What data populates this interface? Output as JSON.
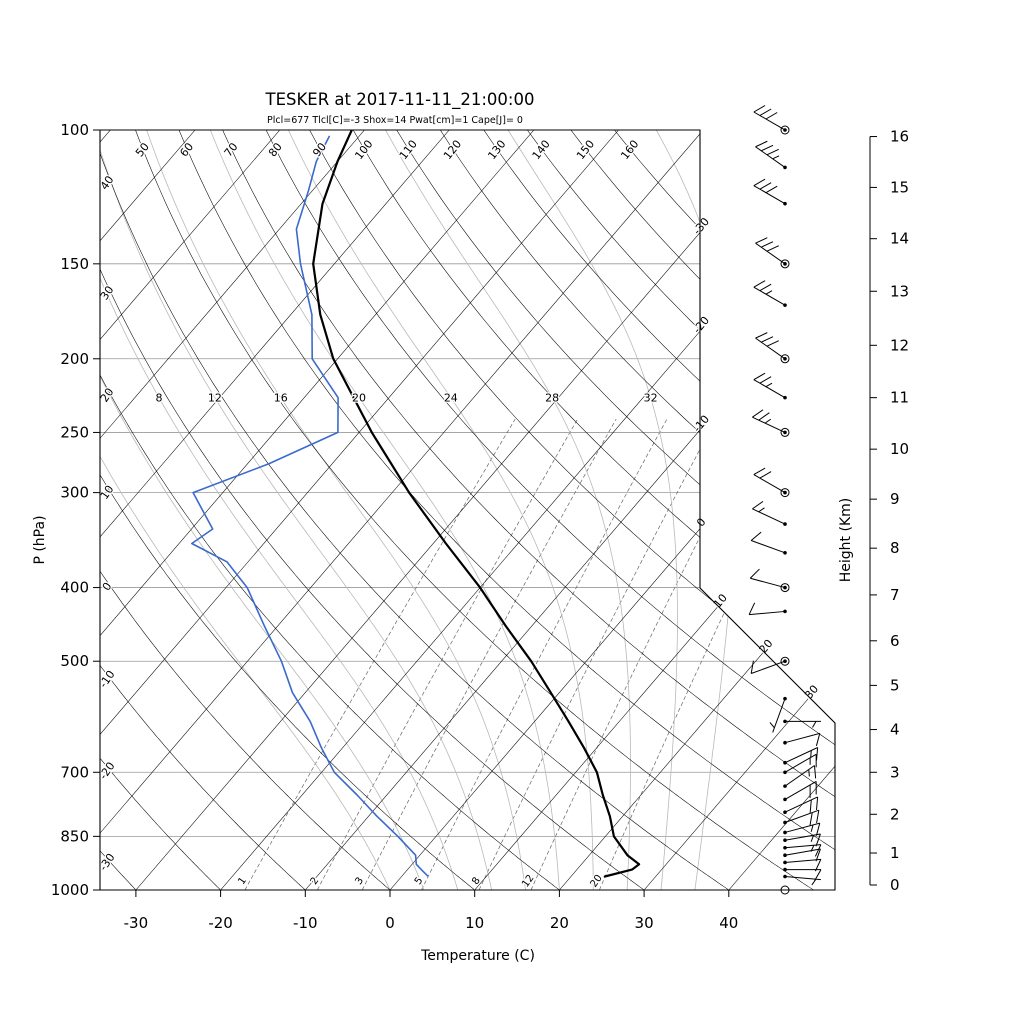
{
  "title": "TESKER at 2017-11-11_21:00:00",
  "subtitle": "Plcl=677 Tlcl[C]=-3 Shox=14 Pwat[cm]=1 Cape[J]= 0",
  "colors": {
    "subtitle": "#cc5500",
    "temperature_line": "#000000",
    "dewpoint_line": "#3a6bcc",
    "isobar": "#999999",
    "isotherm": "#000000",
    "dry_adiabat": "#000000",
    "moist_adiabat": "#b9b9b9",
    "mixing_ratio": "#666666",
    "frame": "#000000",
    "barb": "#000000"
  },
  "axes": {
    "pressure_label": "P (hPa)",
    "temperature_label": "Temperature (C)",
    "height_label": "Height (Km)",
    "pressure_ticks": [
      100,
      150,
      200,
      250,
      300,
      400,
      500,
      700,
      850,
      1000
    ],
    "temperature_ticks": [
      -30,
      -20,
      -10,
      0,
      10,
      20,
      30,
      40
    ]
  },
  "chart_data": {
    "type": "line",
    "subtype": "skewt_log_p_sounding",
    "station": "TESKER",
    "datetime": "2017-11-11_21:00:00",
    "parameters": {
      "Plcl": 677,
      "Tlcl_C": -3,
      "Shox": 14,
      "Pwat_cm": 1,
      "Cape_J": 0
    },
    "xlabel": "Temperature (C)",
    "ylabel": "P (hPa)",
    "y2label": "Height (Km)",
    "xlim": [
      -30,
      40
    ],
    "ylim_hpa": [
      1000,
      100
    ],
    "isotherms_c": {
      "min": -120,
      "max": 40,
      "step": 10,
      "edge_labels": [
        -30,
        -20,
        -10,
        0,
        10,
        20,
        30
      ]
    },
    "dry_adiabats_c": {
      "min": -30,
      "max": 160,
      "step": 10,
      "left_labels": [
        40,
        30,
        20,
        10,
        0,
        -10,
        -20,
        -30
      ],
      "top_labels": [
        50,
        60,
        70,
        80,
        90,
        100,
        110,
        120,
        130,
        140,
        150,
        160
      ]
    },
    "moist_adiabats_c": {
      "values": [
        0,
        4,
        8,
        12,
        16,
        20,
        24,
        28,
        32,
        36
      ],
      "labeled": [
        8,
        12,
        16,
        20,
        24,
        28,
        32
      ],
      "label_pressure_hpa": 225
    },
    "mixing_ratio_g_kg": [
      1,
      2,
      3,
      5,
      8,
      12,
      20
    ],
    "height_km_pressures": [
      [
        0,
        985
      ],
      [
        1,
        894
      ],
      [
        2,
        795
      ],
      [
        3,
        700
      ],
      [
        4,
        615
      ],
      [
        5,
        538
      ],
      [
        6,
        470
      ],
      [
        7,
        409
      ],
      [
        8,
        355
      ],
      [
        9,
        306
      ],
      [
        10,
        263
      ],
      [
        11,
        225
      ],
      [
        12,
        192
      ],
      [
        13,
        163
      ],
      [
        14,
        139
      ],
      [
        15,
        119
      ],
      [
        16,
        102
      ]
    ],
    "temperature_profile": {
      "pressure_hpa": [
        960,
        940,
        925,
        900,
        850,
        800,
        750,
        700,
        650,
        600,
        550,
        500,
        450,
        400,
        350,
        300,
        250,
        200,
        175,
        150,
        125,
        110,
        100
      ],
      "temp_c": [
        24.0,
        26.5,
        26.8,
        24.5,
        21.0,
        18.5,
        15.5,
        12.5,
        8.5,
        4.0,
        -1.0,
        -6.5,
        -13.0,
        -20.0,
        -28.5,
        -38.0,
        -48.5,
        -60.5,
        -66.5,
        -72.5,
        -77.5,
        -80.0,
        -81.5
      ]
    },
    "dewpoint_profile": {
      "pressure_hpa": [
        958,
        945,
        925,
        900,
        850,
        800,
        750,
        700,
        650,
        600,
        550,
        500,
        450,
        400,
        370,
        350,
        335,
        320,
        300,
        275,
        250,
        225,
        200,
        175,
        150,
        135,
        120,
        110,
        102
      ],
      "temp_c": [
        3.0,
        2.0,
        0.5,
        -0.5,
        -4.5,
        -9.0,
        -13.5,
        -18.5,
        -22.5,
        -26.5,
        -31.5,
        -36.0,
        -41.5,
        -47.5,
        -52.5,
        -58.5,
        -57.5,
        -60.0,
        -63.5,
        -57.5,
        -52.5,
        -56.0,
        -63.0,
        -67.5,
        -74.0,
        -78.0,
        -80.5,
        -82.5,
        -83.5
      ]
    },
    "wind_barbs": [
      [
        100,
        300,
        30
      ],
      [
        112,
        305,
        35
      ],
      [
        125,
        300,
        30
      ],
      [
        150,
        305,
        30
      ],
      [
        170,
        300,
        25
      ],
      [
        200,
        305,
        30
      ],
      [
        225,
        300,
        25
      ],
      [
        250,
        295,
        25
      ],
      [
        300,
        300,
        20
      ],
      [
        330,
        295,
        15
      ],
      [
        360,
        290,
        10
      ],
      [
        400,
        285,
        10
      ],
      [
        430,
        265,
        10
      ],
      [
        500,
        250,
        10
      ],
      [
        560,
        200,
        5
      ],
      [
        600,
        90,
        5
      ],
      [
        640,
        75,
        10
      ],
      [
        680,
        65,
        15
      ],
      [
        700,
        60,
        15
      ],
      [
        730,
        55,
        15
      ],
      [
        760,
        60,
        20
      ],
      [
        790,
        65,
        20
      ],
      [
        815,
        70,
        20
      ],
      [
        840,
        75,
        15
      ],
      [
        860,
        80,
        15
      ],
      [
        880,
        85,
        15
      ],
      [
        900,
        80,
        10
      ],
      [
        920,
        85,
        10
      ],
      [
        940,
        90,
        10
      ],
      [
        960,
        95,
        5
      ]
    ],
    "open_marker_pressures": [
      100,
      150,
      200,
      250,
      300,
      400,
      500,
      1000
    ]
  }
}
